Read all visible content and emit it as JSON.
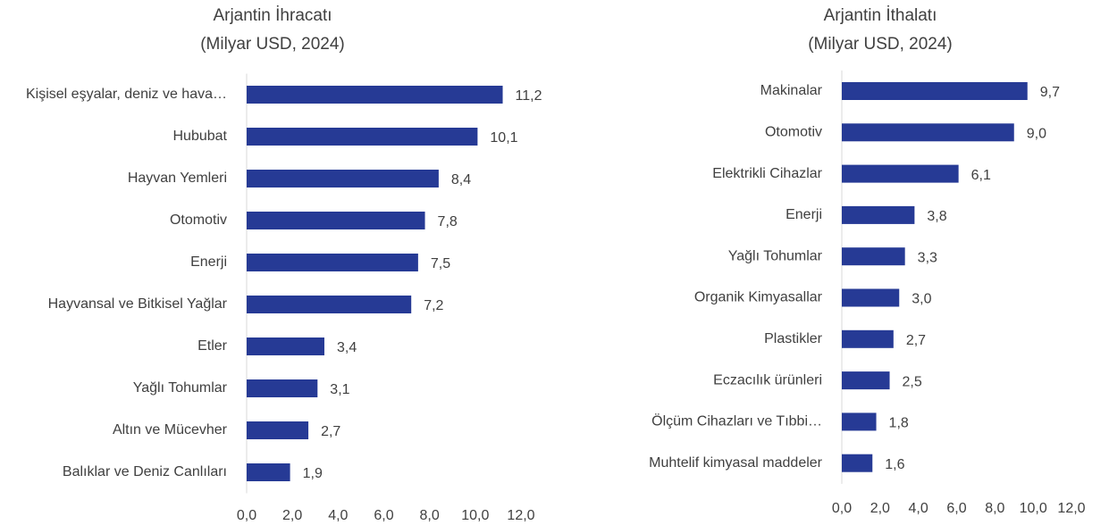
{
  "chart_data": [
    {
      "type": "bar",
      "orientation": "horizontal",
      "title": "Arjantin İhracatı",
      "subtitle": "(Milyar USD, 2024)",
      "categories": [
        "Kişisel eşyalar, deniz ve hava…",
        "Hububat",
        "Hayvan Yemleri",
        "Otomotiv",
        "Enerji",
        "Hayvansal ve Bitkisel Yağlar",
        "Etler",
        "Yağlı Tohumlar",
        "Altın ve Mücevher",
        "Balıklar ve Deniz Canlıları"
      ],
      "values": [
        11.2,
        10.1,
        8.4,
        7.8,
        7.5,
        7.2,
        3.4,
        3.1,
        2.7,
        1.9
      ],
      "value_labels": [
        "11,2",
        "10,1",
        "8,4",
        "7,8",
        "7,5",
        "7,2",
        "3,4",
        "3,1",
        "2,7",
        "1,9"
      ],
      "color": "#263a95",
      "xlim": [
        0,
        12
      ],
      "xticks": [
        {
          "value": 0,
          "label": "0,0"
        },
        {
          "value": 2,
          "label": "2,0"
        },
        {
          "value": 4,
          "label": "4,0"
        },
        {
          "value": 6,
          "label": "6,0"
        },
        {
          "value": 8,
          "label": "8,0"
        },
        {
          "value": 10,
          "label": "10,0"
        },
        {
          "value": 12,
          "label": "12,0"
        }
      ]
    },
    {
      "type": "bar",
      "orientation": "horizontal",
      "title": "Arjantin İthalatı",
      "subtitle": "(Milyar USD, 2024)",
      "categories": [
        "Makinalar",
        "Otomotiv",
        "Elektrikli Cihazlar",
        "Enerji",
        "Yağlı Tohumlar",
        "Organik Kimyasallar",
        "Plastikler",
        "Eczacılık ürünleri",
        "Ölçüm Cihazları ve Tıbbi…",
        "Muhtelif kimyasal maddeler"
      ],
      "values": [
        9.7,
        9.0,
        6.1,
        3.8,
        3.3,
        3.0,
        2.7,
        2.5,
        1.8,
        1.6
      ],
      "value_labels": [
        "9,7",
        "9,0",
        "6,1",
        "3,8",
        "3,3",
        "3,0",
        "2,7",
        "2,5",
        "1,8",
        "1,6"
      ],
      "color": "#263a95",
      "xlim": [
        0,
        12
      ],
      "xticks": [
        {
          "value": 0,
          "label": "0,0"
        },
        {
          "value": 2,
          "label": "2,0"
        },
        {
          "value": 4,
          "label": "4,0"
        },
        {
          "value": 6,
          "label": "6,0"
        },
        {
          "value": 8,
          "label": "8,0"
        },
        {
          "value": 10,
          "label": "10,0"
        },
        {
          "value": 12,
          "label": "12,0"
        }
      ]
    }
  ]
}
